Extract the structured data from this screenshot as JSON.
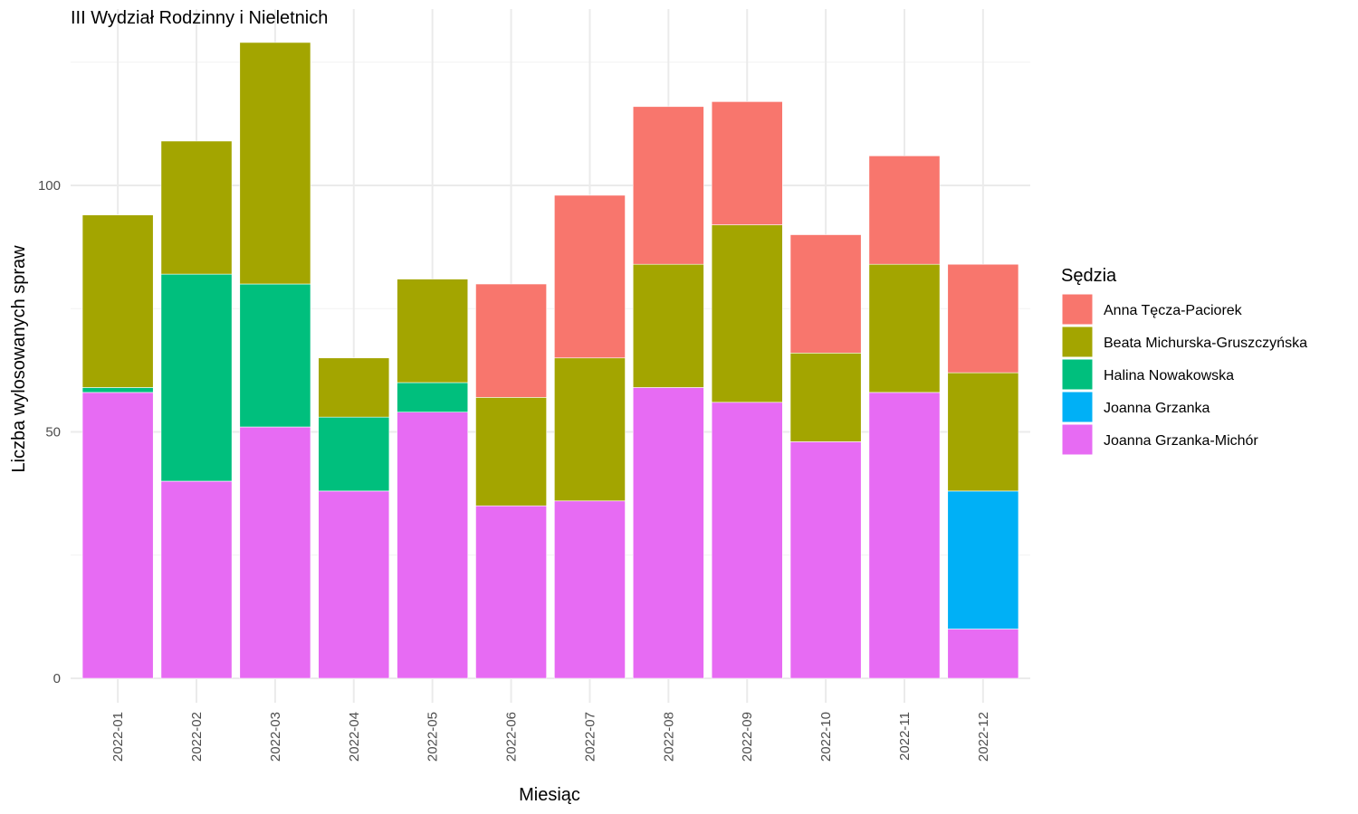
{
  "chart_data": {
    "type": "bar",
    "stacked": true,
    "title": "III Wydział Rodzinny i Nieletnich",
    "xlabel": "Miesiąc",
    "ylabel": "Liczba wylosowanych spraw",
    "ylim": [
      0,
      130
    ],
    "yticks": [
      0,
      50,
      100
    ],
    "grid": true,
    "legend": {
      "title": "Sędzia",
      "position": "right"
    },
    "categories": [
      "2022-01",
      "2022-02",
      "2022-03",
      "2022-04",
      "2022-05",
      "2022-06",
      "2022-07",
      "2022-08",
      "2022-09",
      "2022-10",
      "2022-11",
      "2022-12"
    ],
    "series": [
      {
        "name": "Joanna Grzanka-Michór",
        "color": "#E76BF3",
        "values": [
          58,
          40,
          51,
          38,
          54,
          35,
          36,
          59,
          56,
          48,
          58,
          10
        ]
      },
      {
        "name": "Joanna Grzanka",
        "color": "#00B0F6",
        "values": [
          0,
          0,
          0,
          0,
          0,
          0,
          0,
          0,
          0,
          0,
          0,
          28
        ]
      },
      {
        "name": "Halina Nowakowska",
        "color": "#00BF7D",
        "values": [
          1,
          42,
          29,
          15,
          6,
          0,
          0,
          0,
          0,
          0,
          0,
          0
        ]
      },
      {
        "name": "Beata Michurska-Gruszczyńska",
        "color": "#A3A500",
        "values": [
          35,
          27,
          49,
          12,
          21,
          22,
          29,
          25,
          36,
          18,
          26,
          24
        ]
      },
      {
        "name": "Anna Tęcza-Paciorek",
        "color": "#F8766D",
        "values": [
          0,
          0,
          0,
          0,
          0,
          23,
          33,
          32,
          25,
          24,
          22,
          22
        ]
      }
    ],
    "legend_order": [
      "Anna Tęcza-Paciorek",
      "Beata Michurska-Gruszczyńska",
      "Halina Nowakowska",
      "Joanna Grzanka",
      "Joanna Grzanka-Michór"
    ]
  }
}
